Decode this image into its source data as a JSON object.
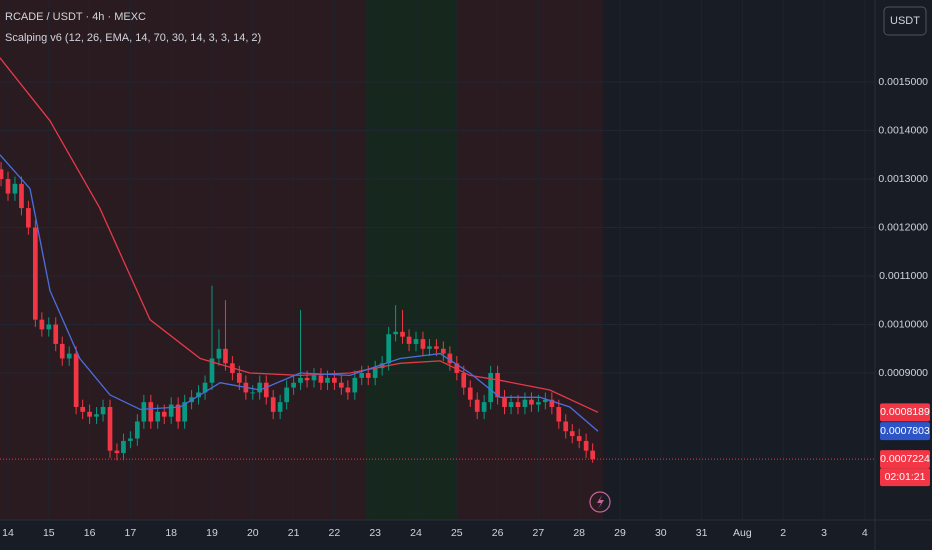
{
  "chart_data": {
    "type": "candlestick",
    "title": "RCADE / USDT · 4h · MEXC",
    "subtitle": "Scalping v6 (12, 26, EMA, 14, 70, 30, 14, 3, 3, 14, 2)",
    "currency": "USDT",
    "background": "#181c25",
    "up_color": "#089981",
    "down_color": "#f23645",
    "xlim": [
      -0.196,
      21.25
    ],
    "ylim": [
      0.000597,
      0.001669
    ],
    "xticks": [
      {
        "value": 0,
        "label": "14"
      },
      {
        "value": 1,
        "label": "15"
      },
      {
        "value": 2,
        "label": "16"
      },
      {
        "value": 3,
        "label": "17"
      },
      {
        "value": 4,
        "label": "18"
      },
      {
        "value": 5,
        "label": "19"
      },
      {
        "value": 6,
        "label": "20"
      },
      {
        "value": 7,
        "label": "21"
      },
      {
        "value": 8,
        "label": "22"
      },
      {
        "value": 9,
        "label": "23"
      },
      {
        "value": 10,
        "label": "24"
      },
      {
        "value": 11,
        "label": "25"
      },
      {
        "value": 12,
        "label": "26"
      },
      {
        "value": 13,
        "label": "27"
      },
      {
        "value": 14,
        "label": "28"
      },
      {
        "value": 15,
        "label": "29"
      },
      {
        "value": 16,
        "label": "30"
      },
      {
        "value": 17,
        "label": "31"
      },
      {
        "value": 18,
        "label": "Aug"
      },
      {
        "value": 19,
        "label": "2"
      },
      {
        "value": 20,
        "label": "3"
      },
      {
        "value": 21,
        "label": "4"
      }
    ],
    "yticks": [
      {
        "value": 0.0009,
        "label": "0.0009000"
      },
      {
        "value": 0.001,
        "label": "0.0010000"
      },
      {
        "value": 0.0011,
        "label": "0.0011000"
      },
      {
        "value": 0.0012,
        "label": "0.0012000"
      },
      {
        "value": 0.0013,
        "label": "0.0013000"
      },
      {
        "value": 0.0014,
        "label": "0.0014000"
      },
      {
        "value": 0.0015,
        "label": "0.0015000"
      }
    ],
    "grid": true,
    "zones": [
      {
        "from": -0.196,
        "to": 8.75,
        "color": "#2a1b20"
      },
      {
        "from": 8.75,
        "to": 11.0,
        "color": "#16281e"
      },
      {
        "from": 11.0,
        "to": 14.58,
        "color": "#2a1b20"
      }
    ],
    "x": [
      -0.17,
      0,
      0.17,
      0.33,
      0.5,
      0.67,
      0.83,
      1,
      1.17,
      1.33,
      1.5,
      1.67,
      1.83,
      2,
      2.17,
      2.33,
      2.5,
      2.67,
      2.83,
      3,
      3.17,
      3.33,
      3.5,
      3.67,
      3.83,
      4,
      4.17,
      4.33,
      4.5,
      4.67,
      4.83,
      5,
      5.17,
      5.33,
      5.5,
      5.67,
      5.83,
      6,
      6.17,
      6.33,
      6.5,
      6.67,
      6.83,
      7,
      7.17,
      7.33,
      7.5,
      7.67,
      7.83,
      8,
      8.17,
      8.33,
      8.5,
      8.67,
      8.83,
      9,
      9.17,
      9.33,
      9.5,
      9.67,
      9.83,
      10,
      10.17,
      10.33,
      10.5,
      10.67,
      10.83,
      11,
      11.17,
      11.33,
      11.5,
      11.67,
      11.83,
      12,
      12.17,
      12.33,
      12.5,
      12.67,
      12.83,
      13,
      13.17,
      13.33,
      13.5,
      13.67,
      13.83,
      14,
      14.17,
      14.33
    ],
    "open": [
      0.00132,
      0.0013,
      0.00127,
      0.00129,
      0.00124,
      0.0012,
      0.00101,
      0.00099,
      0.001,
      0.00096,
      0.00093,
      0.00094,
      0.00083,
      0.00082,
      0.00081,
      0.000815,
      0.00083,
      0.00074,
      0.000735,
      0.00076,
      0.000765,
      0.0008,
      0.00084,
      0.0008,
      0.00082,
      0.00081,
      0.000835,
      0.0008,
      0.00084,
      0.00085,
      0.00086,
      0.00088,
      0.00093,
      0.00095,
      0.00092,
      0.0009,
      0.00088,
      0.00086,
      0.00086,
      0.00088,
      0.00085,
      0.00082,
      0.00084,
      0.00087,
      0.00088,
      0.00089,
      0.000885,
      0.000895,
      0.00088,
      0.00089,
      0.00088,
      0.00087,
      0.00086,
      0.00089,
      0.0009,
      0.00089,
      0.00091,
      0.00092,
      0.00098,
      0.000985,
      0.000975,
      0.00096,
      0.00097,
      0.00095,
      0.000955,
      0.00095,
      0.00094,
      0.00092,
      0.0009,
      0.00087,
      0.000845,
      0.00082,
      0.00084,
      0.0009,
      0.00085,
      0.00083,
      0.00084,
      0.00083,
      0.000845,
      0.000835,
      0.00084,
      0.000845,
      0.00083,
      0.0008,
      0.00078,
      0.00077,
      0.00076,
      0.00074
    ],
    "high": [
      0.001335,
      0.001315,
      0.001305,
      0.001305,
      0.001255,
      0.001215,
      0.001025,
      0.001015,
      0.001015,
      0.000975,
      0.000955,
      0.000955,
      0.000845,
      0.000835,
      0.00083,
      0.000845,
      0.000845,
      0.000755,
      0.000775,
      0.00078,
      0.000815,
      0.000855,
      0.000855,
      0.000835,
      0.000835,
      0.00085,
      0.00085,
      0.000855,
      0.000865,
      0.000875,
      0.000895,
      0.00108,
      0.00099,
      0.00105,
      0.000935,
      0.000915,
      0.000895,
      0.000875,
      0.000895,
      0.000895,
      0.000865,
      0.000855,
      0.000885,
      0.000895,
      0.00103,
      0.000905,
      0.00091,
      0.00091,
      0.000905,
      0.000905,
      0.000895,
      0.000885,
      0.000905,
      0.000915,
      0.000915,
      0.000925,
      0.000935,
      0.000995,
      0.00104,
      0.00103,
      0.00099,
      0.000985,
      0.000985,
      0.00097,
      0.00097,
      0.000965,
      0.000955,
      0.000935,
      0.000915,
      0.000885,
      0.00086,
      0.000855,
      0.000915,
      0.000915,
      0.000865,
      0.000855,
      0.000855,
      0.00086,
      0.00086,
      0.000855,
      0.00086,
      0.00086,
      0.000845,
      0.000815,
      0.000795,
      0.000785,
      0.000775,
      0.000755
    ],
    "low": [
      0.001285,
      0.001255,
      0.001255,
      0.001225,
      0.001185,
      0.000995,
      0.000975,
      0.000975,
      0.000945,
      0.000915,
      0.000915,
      0.000815,
      0.000805,
      0.000795,
      0.000795,
      0.0008,
      0.000725,
      0.00072,
      0.00072,
      0.000745,
      0.00075,
      0.000785,
      0.000785,
      0.000785,
      0.000795,
      0.000795,
      0.000785,
      0.000785,
      0.000825,
      0.000835,
      0.000845,
      0.000865,
      0.000915,
      0.000905,
      0.000885,
      0.000865,
      0.000845,
      0.000845,
      0.000845,
      0.000835,
      0.000805,
      0.000805,
      0.000825,
      0.000855,
      0.000865,
      0.00087,
      0.00087,
      0.000865,
      0.000865,
      0.000865,
      0.000855,
      0.000845,
      0.000845,
      0.000875,
      0.000875,
      0.000875,
      0.000895,
      0.000905,
      0.000965,
      0.00096,
      0.000945,
      0.000945,
      0.000935,
      0.000935,
      0.000935,
      0.000925,
      0.000905,
      0.000885,
      0.000855,
      0.00083,
      0.000805,
      0.000805,
      0.000825,
      0.000835,
      0.000815,
      0.000815,
      0.000815,
      0.000815,
      0.00082,
      0.00082,
      0.000825,
      0.000815,
      0.000785,
      0.000765,
      0.000755,
      0.000745,
      0.000725,
      0.000715
    ],
    "close": [
      0.0013,
      0.00127,
      0.00129,
      0.00124,
      0.0012,
      0.00101,
      0.00099,
      0.001,
      0.00096,
      0.00093,
      0.00094,
      0.00083,
      0.00082,
      0.00081,
      0.000815,
      0.00083,
      0.00074,
      0.000735,
      0.00076,
      0.000765,
      0.0008,
      0.00084,
      0.0008,
      0.00082,
      0.00081,
      0.000835,
      0.0008,
      0.00084,
      0.00085,
      0.00086,
      0.00088,
      0.00093,
      0.00095,
      0.00092,
      0.0009,
      0.00088,
      0.00086,
      0.00086,
      0.00088,
      0.00085,
      0.00082,
      0.00084,
      0.00087,
      0.00088,
      0.00089,
      0.000885,
      0.000895,
      0.00088,
      0.00089,
      0.00088,
      0.00087,
      0.00086,
      0.00089,
      0.0009,
      0.00089,
      0.00091,
      0.00092,
      0.00098,
      0.000985,
      0.000975,
      0.00096,
      0.00097,
      0.00095,
      0.000955,
      0.00095,
      0.00094,
      0.00092,
      0.0009,
      0.00087,
      0.000845,
      0.00082,
      0.00084,
      0.0009,
      0.00085,
      0.00083,
      0.00084,
      0.00083,
      0.000845,
      0.000835,
      0.00084,
      0.000845,
      0.00083,
      0.0008,
      0.00078,
      0.00077,
      0.00076,
      0.00074,
      0.0007224
    ],
    "lines": [
      {
        "color": "#e5394a",
        "x": [
          -0.2,
          1.03,
          2.25,
          3.48,
          4.71,
          5.93,
          7.16,
          8.38,
          9.61,
          10.59,
          11.32,
          12.06,
          13.28,
          14.46
        ],
        "values": [
          0.00155,
          0.00142,
          0.00124,
          0.00101,
          0.00093,
          0.0009,
          0.000895,
          0.0009,
          0.00092,
          0.000925,
          0.000895,
          0.000885,
          0.000865,
          0.000819
        ]
      },
      {
        "color": "#4a6fe0",
        "x": [
          -0.2,
          0.54,
          1.03,
          1.76,
          2.5,
          3.24,
          4.22,
          5.2,
          6.18,
          7.16,
          8.38,
          9.61,
          10.59,
          11.32,
          12.06,
          13.04,
          13.77,
          14.46
        ],
        "values": [
          0.00135,
          0.00128,
          0.00107,
          0.00093,
          0.000855,
          0.000825,
          0.00083,
          0.00088,
          0.000865,
          0.0009,
          0.000895,
          0.00093,
          0.00094,
          0.0009,
          0.00085,
          0.00085,
          0.00083,
          0.00078
        ]
      }
    ],
    "last_price": 0.0007224,
    "price_tags": [
      {
        "value": 0.0008189,
        "color": "#f23645"
      },
      {
        "value": 0.0007803,
        "color": "#2d55c8"
      },
      {
        "value": 0.0007224,
        "color": "#f23645"
      }
    ],
    "countdown": "02:01:21"
  }
}
